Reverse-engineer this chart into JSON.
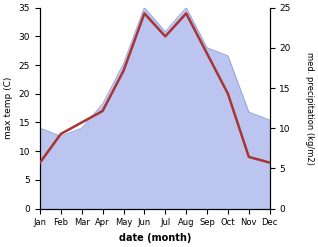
{
  "months": [
    "Jan",
    "Feb",
    "Mar",
    "Apr",
    "May",
    "Jun",
    "Jul",
    "Aug",
    "Sep",
    "Oct",
    "Nov",
    "Dec"
  ],
  "temp": [
    8,
    13,
    15,
    17,
    24,
    34,
    30,
    34,
    27,
    20,
    9,
    8
  ],
  "precip": [
    10,
    9,
    10,
    13,
    18,
    25,
    22,
    25,
    20,
    19,
    12,
    11
  ],
  "temp_color": "#aa3333",
  "precip_fill_color": "#bbc5ef",
  "precip_line_color": "#9aa8e0",
  "ylabel_left": "max temp (C)",
  "ylabel_right": "med. precipitation (kg/m2)",
  "xlabel": "date (month)",
  "ylim_left": [
    0,
    35
  ],
  "ylim_right": [
    0,
    25
  ],
  "yticks_left": [
    0,
    5,
    10,
    15,
    20,
    25,
    30,
    35
  ],
  "yticks_right": [
    0,
    5,
    10,
    15,
    20,
    25
  ],
  "background_color": "#ffffff",
  "figsize": [
    3.18,
    2.47
  ],
  "dpi": 100
}
